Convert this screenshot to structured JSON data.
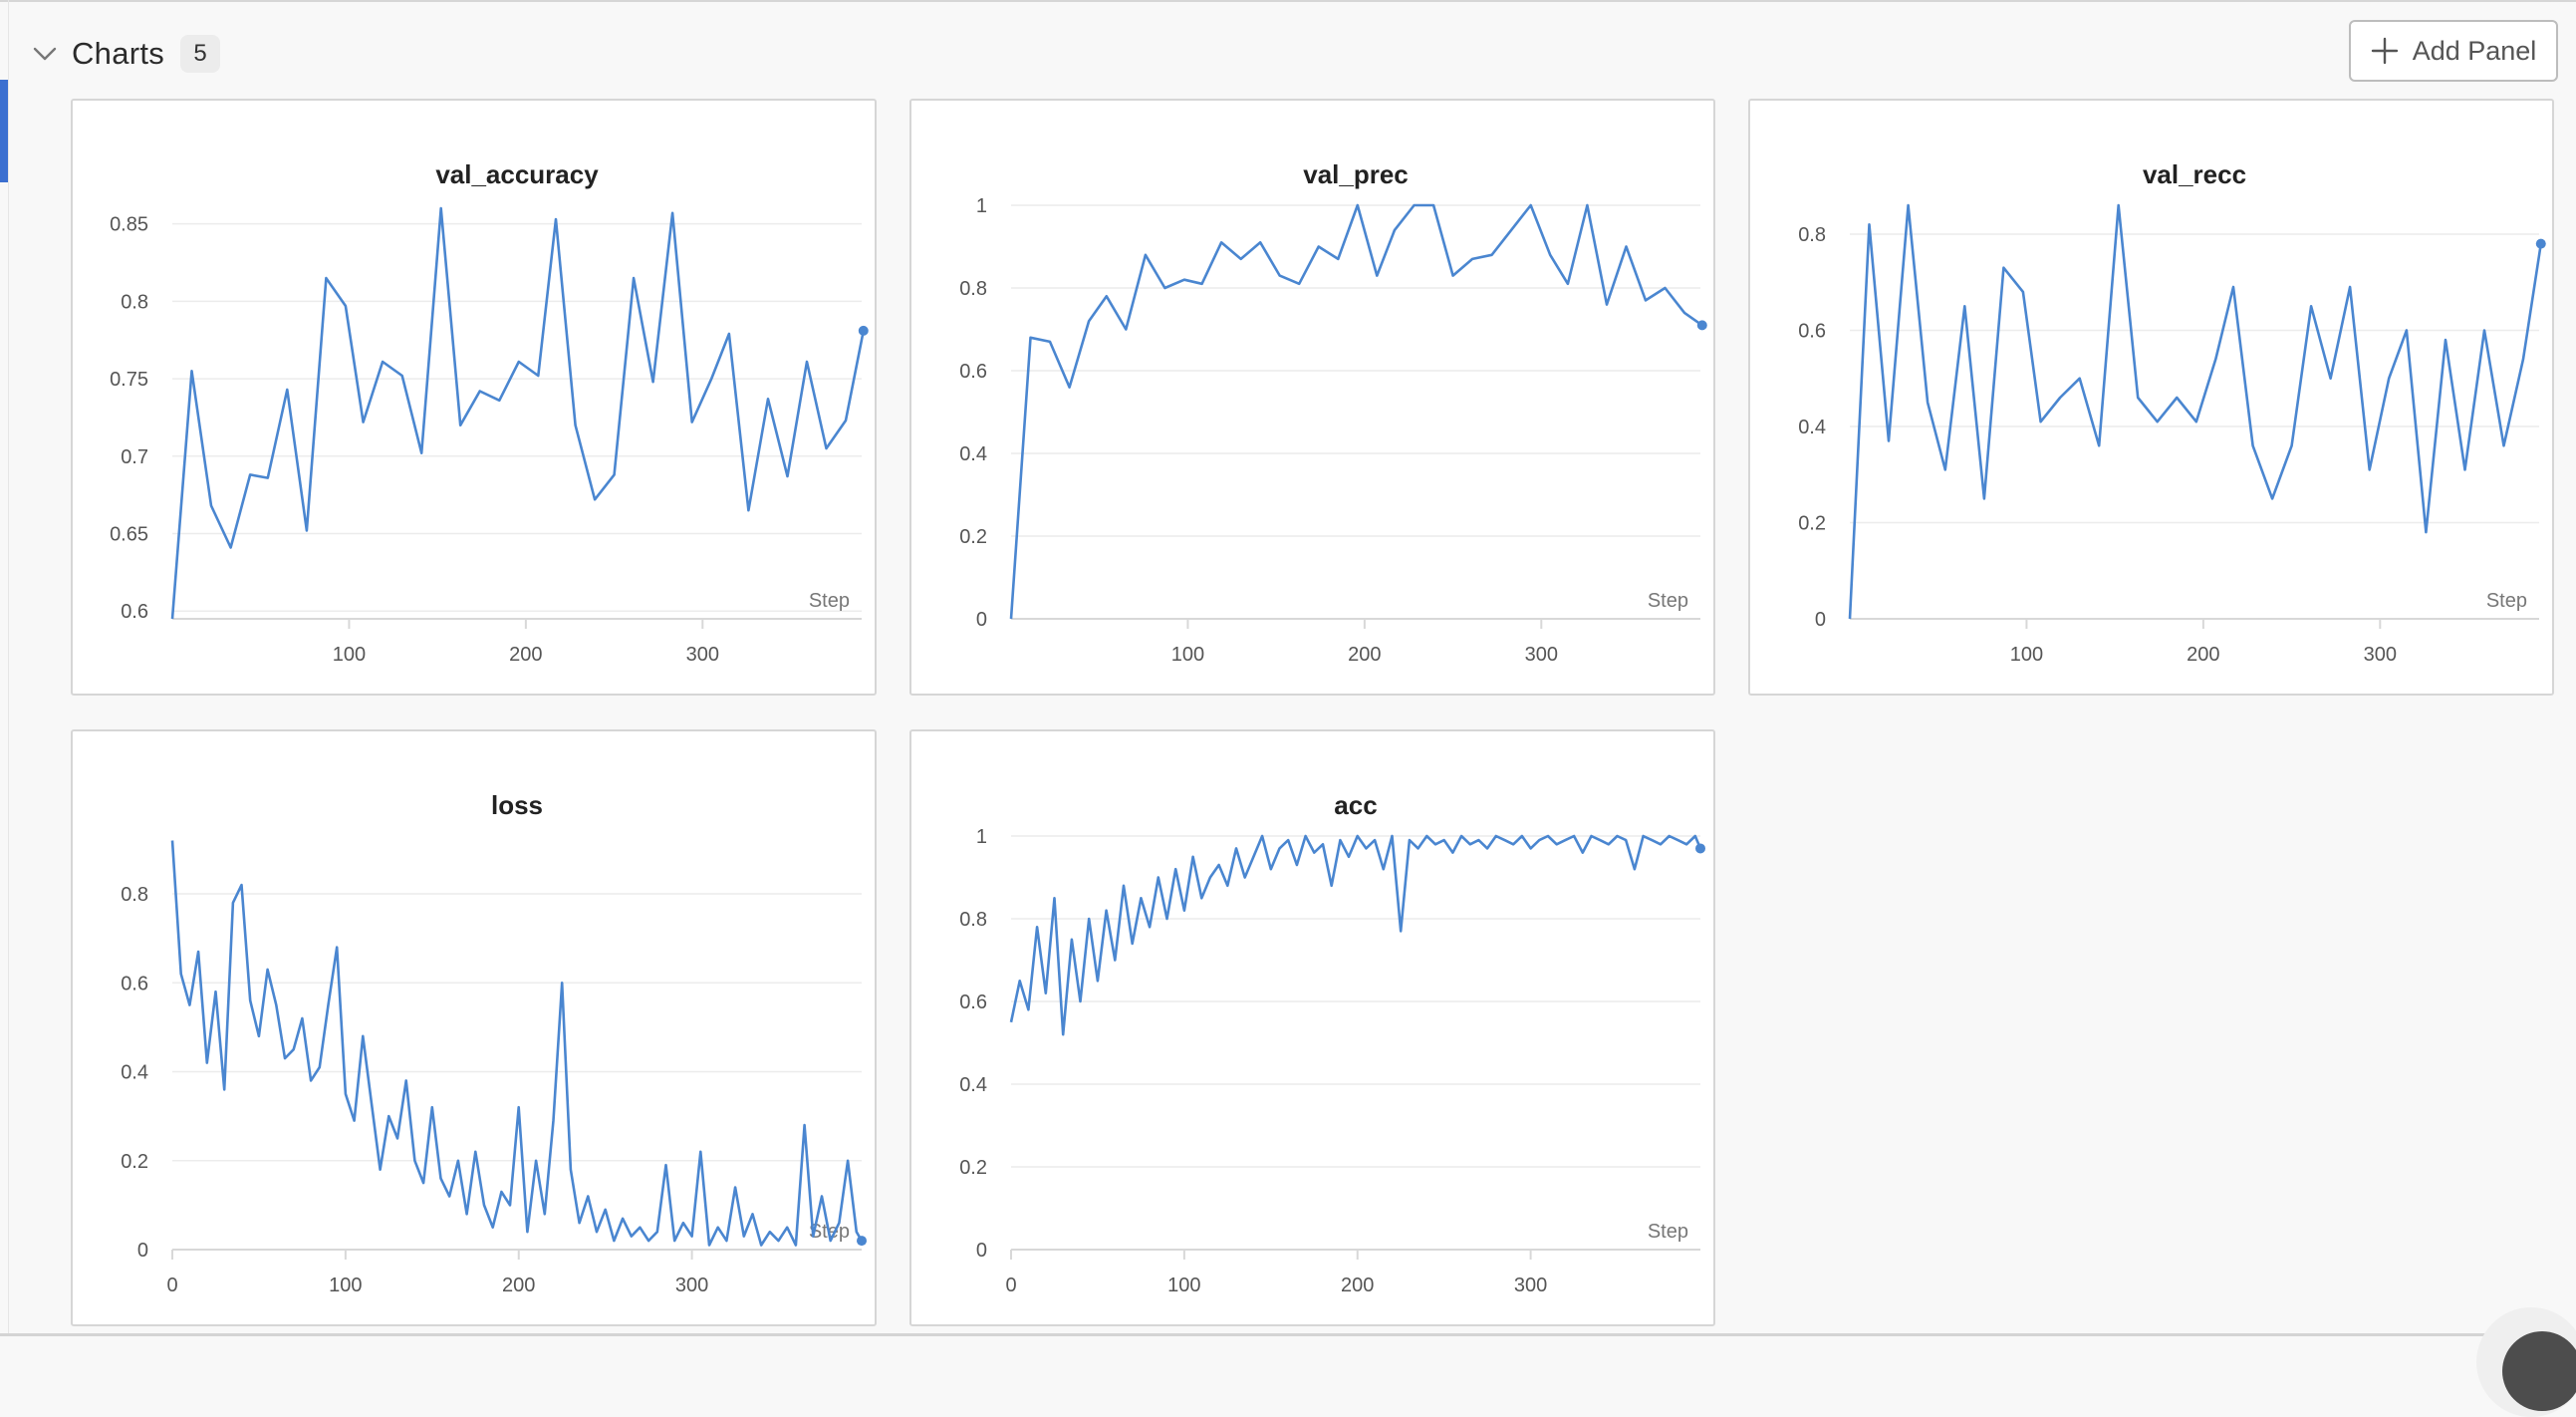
{
  "section": {
    "title": "Charts",
    "count": "5",
    "add_panel_label": "Add Panel"
  },
  "colors": {
    "line": "#4a86d0",
    "grid": "#ececec",
    "axis": "#d8d8d8",
    "text": "#555555",
    "title": "#222222"
  },
  "panels": [
    {
      "id": "val-accuracy",
      "chart_data": {
        "type": "line",
        "title": "val_accuracy",
        "xlabel": "Step",
        "xlim": [
          0,
          390
        ],
        "ylim": [
          0.595,
          0.862
        ],
        "xticks": [
          100,
          200,
          300
        ],
        "yticks": [
          0.6,
          0.65,
          0.7,
          0.75,
          0.8,
          0.85
        ],
        "ytick_labels": [
          "0.6",
          "0.65",
          "0.7",
          "0.75",
          "0.8",
          "0.85"
        ],
        "end_marker": true,
        "x": [
          0,
          11,
          22,
          33,
          44,
          54,
          65,
          76,
          87,
          98,
          108,
          119,
          130,
          141,
          152,
          163,
          174,
          185,
          196,
          207,
          217,
          228,
          239,
          250,
          261,
          272,
          283,
          294,
          305,
          315,
          326,
          337,
          348,
          359,
          370,
          381,
          391
        ],
        "y": [
          0.595,
          0.755,
          0.668,
          0.641,
          0.688,
          0.686,
          0.743,
          0.652,
          0.815,
          0.797,
          0.722,
          0.761,
          0.752,
          0.702,
          0.86,
          0.72,
          0.742,
          0.736,
          0.761,
          0.752,
          0.853,
          0.72,
          0.672,
          0.688,
          0.815,
          0.748,
          0.857,
          0.722,
          0.75,
          0.779,
          0.665,
          0.737,
          0.687,
          0.761,
          0.705,
          0.723,
          0.781
        ]
      }
    },
    {
      "id": "val-prec",
      "chart_data": {
        "type": "line",
        "title": "val_prec",
        "xlabel": "Step",
        "xlim": [
          0,
          390
        ],
        "ylim": [
          0,
          1
        ],
        "xticks": [
          100,
          200,
          300
        ],
        "yticks": [
          0,
          0.2,
          0.4,
          0.6,
          0.8,
          1
        ],
        "ytick_labels": [
          "0",
          "0.2",
          "0.4",
          "0.6",
          "0.8",
          "1"
        ],
        "end_marker": true,
        "x": [
          0,
          11,
          22,
          33,
          44,
          54,
          65,
          76,
          87,
          98,
          108,
          119,
          130,
          141,
          152,
          163,
          174,
          185,
          196,
          207,
          217,
          228,
          239,
          250,
          261,
          272,
          283,
          294,
          305,
          315,
          326,
          337,
          348,
          359,
          370,
          381,
          391
        ],
        "y": [
          0,
          0.68,
          0.67,
          0.56,
          0.72,
          0.78,
          0.7,
          0.88,
          0.8,
          0.82,
          0.81,
          0.91,
          0.87,
          0.91,
          0.83,
          0.81,
          0.9,
          0.87,
          1.0,
          0.83,
          0.94,
          1.0,
          1.0,
          0.83,
          0.87,
          0.88,
          0.94,
          1.0,
          0.88,
          0.81,
          1.0,
          0.76,
          0.9,
          0.77,
          0.8,
          0.74,
          0.71
        ]
      }
    },
    {
      "id": "val-recc",
      "chart_data": {
        "type": "line",
        "title": "val_recc",
        "xlabel": "Step",
        "xlim": [
          0,
          390
        ],
        "ylim": [
          0,
          0.86
        ],
        "xticks": [
          100,
          200,
          300
        ],
        "yticks": [
          0,
          0.2,
          0.4,
          0.6,
          0.8
        ],
        "ytick_labels": [
          "0",
          "0.2",
          "0.4",
          "0.6",
          "0.8"
        ],
        "end_marker": true,
        "x": [
          0,
          11,
          22,
          33,
          44,
          54,
          65,
          76,
          87,
          98,
          108,
          119,
          130,
          141,
          152,
          163,
          174,
          185,
          196,
          207,
          217,
          228,
          239,
          250,
          261,
          272,
          283,
          294,
          305,
          315,
          326,
          337,
          348,
          359,
          370,
          381,
          391
        ],
        "y": [
          0,
          0.82,
          0.37,
          0.86,
          0.45,
          0.31,
          0.65,
          0.25,
          0.73,
          0.68,
          0.41,
          0.46,
          0.5,
          0.36,
          0.86,
          0.46,
          0.41,
          0.46,
          0.41,
          0.54,
          0.69,
          0.36,
          0.25,
          0.36,
          0.65,
          0.5,
          0.69,
          0.31,
          0.5,
          0.6,
          0.18,
          0.58,
          0.31,
          0.6,
          0.36,
          0.54,
          0.78
        ]
      }
    },
    {
      "id": "loss",
      "chart_data": {
        "type": "line",
        "title": "loss",
        "xlabel": "Step",
        "xlim": [
          0,
          398
        ],
        "ylim": [
          0,
          0.93
        ],
        "xticks": [
          0,
          100,
          200,
          300
        ],
        "xtick_labels": [
          "0",
          "100",
          "200",
          "300"
        ],
        "yticks": [
          0,
          0.2,
          0.4,
          0.6,
          0.8
        ],
        "ytick_labels": [
          "0",
          "0.2",
          "0.4",
          "0.6",
          "0.8"
        ],
        "end_marker": true,
        "x": [
          0,
          5,
          10,
          15,
          20,
          25,
          30,
          35,
          40,
          45,
          50,
          55,
          60,
          65,
          70,
          75,
          80,
          85,
          90,
          95,
          100,
          105,
          110,
          115,
          120,
          125,
          130,
          135,
          140,
          145,
          150,
          155,
          160,
          165,
          170,
          175,
          180,
          185,
          190,
          195,
          200,
          205,
          210,
          215,
          220,
          225,
          230,
          235,
          240,
          245,
          250,
          255,
          260,
          265,
          270,
          275,
          280,
          285,
          290,
          295,
          300,
          305,
          310,
          315,
          320,
          325,
          330,
          335,
          340,
          345,
          350,
          355,
          360,
          365,
          370,
          375,
          380,
          385,
          390,
          395,
          398
        ],
        "y": [
          0.92,
          0.62,
          0.55,
          0.67,
          0.42,
          0.58,
          0.36,
          0.78,
          0.82,
          0.56,
          0.48,
          0.63,
          0.55,
          0.43,
          0.45,
          0.52,
          0.38,
          0.41,
          0.55,
          0.68,
          0.35,
          0.29,
          0.48,
          0.33,
          0.18,
          0.3,
          0.25,
          0.38,
          0.2,
          0.15,
          0.32,
          0.16,
          0.12,
          0.2,
          0.08,
          0.22,
          0.1,
          0.05,
          0.13,
          0.1,
          0.32,
          0.04,
          0.2,
          0.08,
          0.29,
          0.6,
          0.18,
          0.06,
          0.12,
          0.04,
          0.09,
          0.02,
          0.07,
          0.03,
          0.05,
          0.02,
          0.04,
          0.19,
          0.02,
          0.06,
          0.03,
          0.22,
          0.01,
          0.05,
          0.02,
          0.14,
          0.03,
          0.08,
          0.01,
          0.04,
          0.02,
          0.05,
          0.01,
          0.28,
          0.03,
          0.12,
          0.02,
          0.06,
          0.2,
          0.04,
          0.02
        ]
      }
    },
    {
      "id": "acc",
      "chart_data": {
        "type": "line",
        "title": "acc",
        "xlabel": "Step",
        "xlim": [
          0,
          398
        ],
        "ylim": [
          0,
          1
        ],
        "xticks": [
          0,
          100,
          200,
          300
        ],
        "xtick_labels": [
          "0",
          "100",
          "200",
          "300"
        ],
        "yticks": [
          0,
          0.2,
          0.4,
          0.6,
          0.8,
          1
        ],
        "ytick_labels": [
          "0",
          "0.2",
          "0.4",
          "0.6",
          "0.8",
          "1"
        ],
        "end_marker": true,
        "x": [
          0,
          5,
          10,
          15,
          20,
          25,
          30,
          35,
          40,
          45,
          50,
          55,
          60,
          65,
          70,
          75,
          80,
          85,
          90,
          95,
          100,
          105,
          110,
          115,
          120,
          125,
          130,
          135,
          140,
          145,
          150,
          155,
          160,
          165,
          170,
          175,
          180,
          185,
          190,
          195,
          200,
          205,
          210,
          215,
          220,
          225,
          230,
          235,
          240,
          245,
          250,
          255,
          260,
          265,
          270,
          275,
          280,
          285,
          290,
          295,
          300,
          305,
          310,
          315,
          320,
          325,
          330,
          335,
          340,
          345,
          350,
          355,
          360,
          365,
          370,
          375,
          380,
          385,
          390,
          395,
          398
        ],
        "y": [
          0.55,
          0.65,
          0.58,
          0.78,
          0.62,
          0.85,
          0.52,
          0.75,
          0.6,
          0.8,
          0.65,
          0.82,
          0.7,
          0.88,
          0.74,
          0.85,
          0.78,
          0.9,
          0.8,
          0.92,
          0.82,
          0.95,
          0.85,
          0.9,
          0.93,
          0.88,
          0.97,
          0.9,
          0.95,
          1.0,
          0.92,
          0.97,
          0.99,
          0.93,
          1.0,
          0.96,
          0.98,
          0.88,
          0.99,
          0.95,
          1.0,
          0.97,
          0.99,
          0.92,
          1.0,
          0.77,
          0.99,
          0.97,
          1.0,
          0.98,
          0.99,
          0.96,
          1.0,
          0.98,
          0.99,
          0.97,
          1.0,
          0.99,
          0.98,
          1.0,
          0.97,
          0.99,
          1.0,
          0.98,
          0.99,
          1.0,
          0.96,
          1.0,
          0.99,
          0.98,
          1.0,
          0.99,
          0.92,
          1.0,
          0.99,
          0.98,
          1.0,
          0.99,
          0.98,
          1.0,
          0.97
        ]
      }
    }
  ]
}
